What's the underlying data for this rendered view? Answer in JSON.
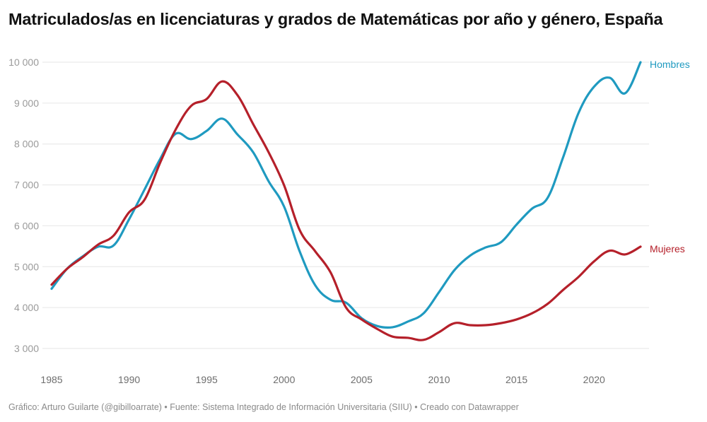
{
  "chart_data": {
    "type": "line",
    "title": "Matriculados/as en licenciaturas y grados de Matemáticas por año y género, España",
    "xlabel": "",
    "ylabel": "",
    "x": [
      1985,
      1986,
      1987,
      1988,
      1989,
      1990,
      1991,
      1992,
      1993,
      1994,
      1995,
      1996,
      1997,
      1998,
      1999,
      2000,
      2001,
      2002,
      2003,
      2004,
      2005,
      2006,
      2007,
      2008,
      2009,
      2010,
      2011,
      2012,
      2013,
      2014,
      2015,
      2016,
      2017,
      2018,
      2019,
      2020,
      2021,
      2022,
      2023
    ],
    "xlim": [
      1985,
      2023
    ],
    "ylim": [
      3000,
      10000
    ],
    "x_ticks": [
      1985,
      1990,
      1995,
      2000,
      2005,
      2010,
      2015,
      2020
    ],
    "x_tick_labels": [
      "1985",
      "1990",
      "1995",
      "2000",
      "2005",
      "2010",
      "2015",
      "2020"
    ],
    "y_ticks": [
      3000,
      4000,
      5000,
      6000,
      7000,
      8000,
      9000,
      10000
    ],
    "y_tick_labels": [
      "3 000",
      "4 000",
      "5 000",
      "6 000",
      "7 000",
      "8 000",
      "9 000",
      "10 000"
    ],
    "grid": true,
    "legend": "inline-right",
    "series": [
      {
        "name": "Hombres",
        "color": "#1f9ac0",
        "values": [
          4460,
          4950,
          5250,
          5490,
          5520,
          6160,
          6890,
          7630,
          8250,
          8120,
          8320,
          8620,
          8230,
          7800,
          7090,
          6470,
          5380,
          4550,
          4190,
          4120,
          3740,
          3550,
          3520,
          3660,
          3860,
          4380,
          4920,
          5270,
          5470,
          5600,
          6030,
          6420,
          6680,
          7670,
          8760,
          9400,
          9620,
          9240,
          10000
        ]
      },
      {
        "name": "Mujeres",
        "color": "#b5202a",
        "values": [
          4560,
          4950,
          5230,
          5540,
          5760,
          6330,
          6640,
          7540,
          8350,
          8930,
          9100,
          9530,
          9190,
          8490,
          7800,
          6990,
          5900,
          5380,
          4860,
          4000,
          3710,
          3480,
          3290,
          3260,
          3210,
          3400,
          3620,
          3570,
          3570,
          3620,
          3710,
          3860,
          4090,
          4430,
          4750,
          5130,
          5390,
          5300,
          5490
        ]
      }
    ]
  },
  "footer": {
    "credits": "Gráfico: Arturo Guilarte (@gibilloarrate) • Fuente: Sistema Integrado de Información Universitaria (SIIU) • Creado con Datawrapper"
  }
}
